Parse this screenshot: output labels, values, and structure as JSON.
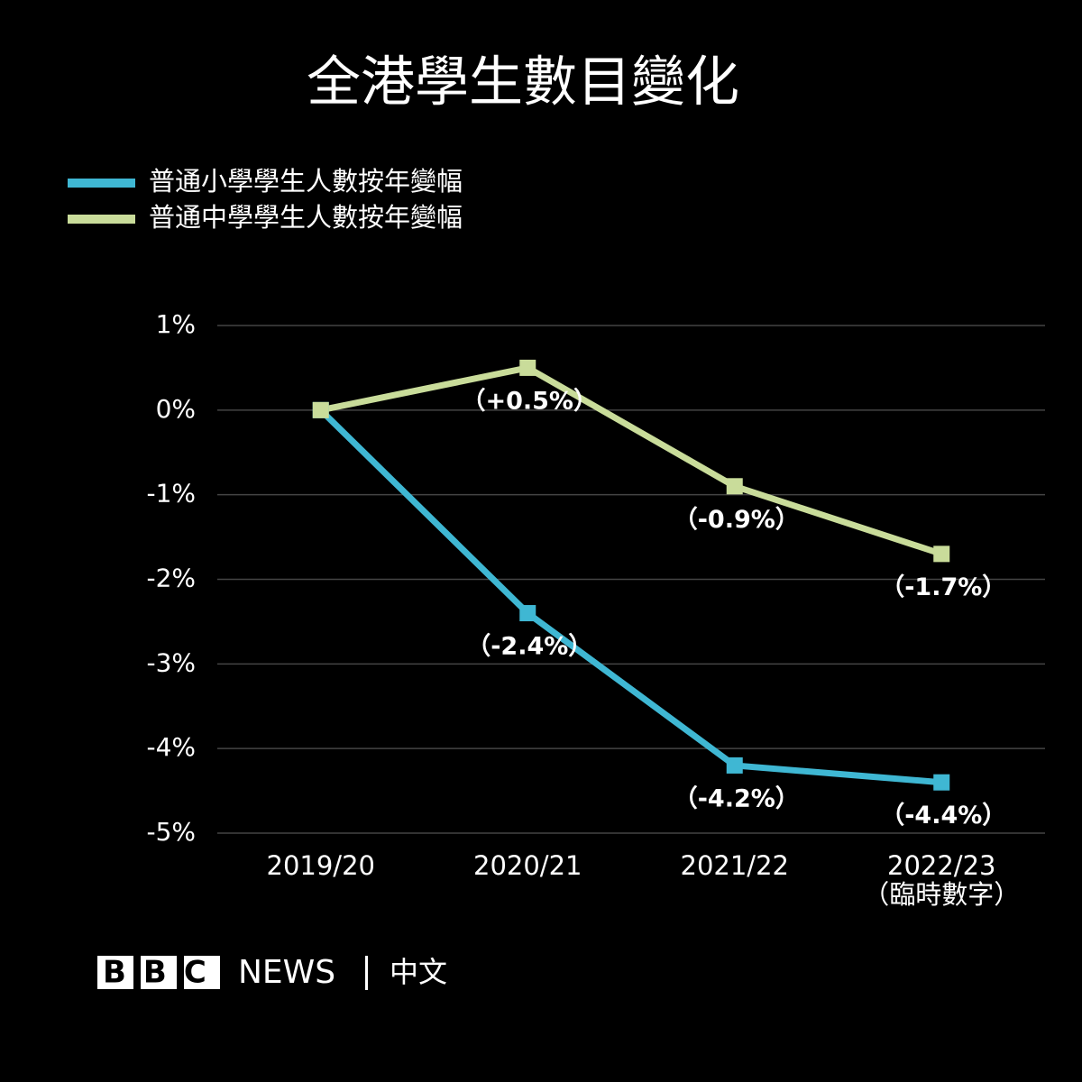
{
  "chart_data": {
    "type": "line",
    "title": "全港學生數目變化",
    "categories": [
      "2019/20",
      "2020/21",
      "2021/22",
      "2022/23\n（臨時數字）"
    ],
    "series": [
      {
        "name": "普通小學學生人數按年變幅",
        "color": "#3fb7d3",
        "values": [
          0,
          -2.4,
          -4.2,
          -4.4
        ],
        "value_labels": [
          null,
          "（-2.4%）",
          "（-4.2%）",
          "（-4.4%）"
        ]
      },
      {
        "name": "普通中學學生人數按年變幅",
        "color": "#c9dc9a",
        "values": [
          0,
          0.5,
          -0.9,
          -1.7
        ],
        "value_labels": [
          null,
          "（+0.5%）",
          "（-0.9%）",
          "（-1.7%）"
        ]
      }
    ],
    "ylim": [
      -5,
      1
    ],
    "yticks": [
      {
        "value": 1,
        "label": "1%"
      },
      {
        "value": 0,
        "label": "0%"
      },
      {
        "value": -1,
        "label": "-1%"
      },
      {
        "value": -2,
        "label": "-2%"
      },
      {
        "value": -3,
        "label": "-3%"
      },
      {
        "value": -4,
        "label": "-4%"
      },
      {
        "value": -5,
        "label": "-5%"
      }
    ],
    "grid": true,
    "legend": "top-left",
    "source": {
      "logo": "BBC",
      "name": "NEWS",
      "language": "中文"
    }
  }
}
